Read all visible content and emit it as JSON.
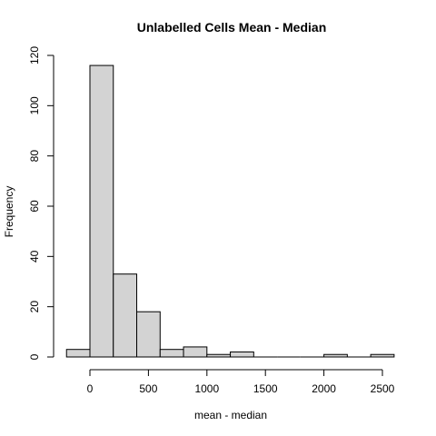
{
  "chart_data": {
    "type": "histogram",
    "title": "Unlabelled Cells Mean - Median",
    "xlabel": "mean - median",
    "ylabel": "Frequency",
    "bins": [
      {
        "start": -200,
        "end": 0,
        "count": 3
      },
      {
        "start": 0,
        "end": 200,
        "count": 116
      },
      {
        "start": 200,
        "end": 400,
        "count": 33
      },
      {
        "start": 400,
        "end": 600,
        "count": 18
      },
      {
        "start": 600,
        "end": 800,
        "count": 3
      },
      {
        "start": 800,
        "end": 1000,
        "count": 4
      },
      {
        "start": 1000,
        "end": 1200,
        "count": 1
      },
      {
        "start": 1200,
        "end": 1400,
        "count": 2
      },
      {
        "start": 1400,
        "end": 1600,
        "count": 0
      },
      {
        "start": 1600,
        "end": 1800,
        "count": 0
      },
      {
        "start": 1800,
        "end": 2000,
        "count": 0
      },
      {
        "start": 2000,
        "end": 2200,
        "count": 1
      },
      {
        "start": 2200,
        "end": 2400,
        "count": 0
      },
      {
        "start": 2400,
        "end": 2600,
        "count": 1
      }
    ],
    "xticks": [
      0,
      500,
      1000,
      1500,
      2000,
      2500
    ],
    "yticks": [
      0,
      20,
      40,
      60,
      80,
      100,
      120
    ],
    "xlim": [
      -200,
      2600
    ],
    "ylim": [
      0,
      120
    ],
    "bar_color": "#d3d3d3",
    "grid": false
  }
}
